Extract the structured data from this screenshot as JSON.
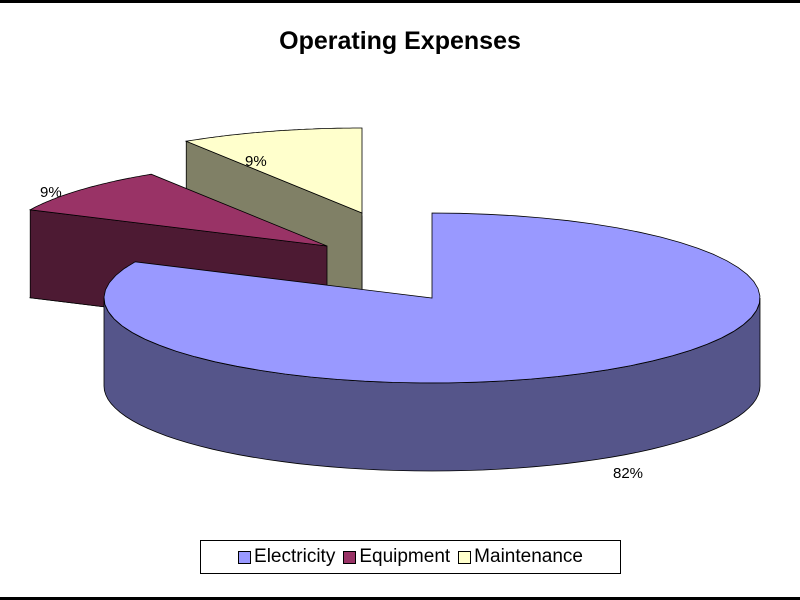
{
  "chart_data": {
    "type": "pie",
    "style": "3d-exploded",
    "title": "Operating Expenses",
    "categories": [
      "Electricity",
      "Equipment",
      "Maintenance"
    ],
    "values": [
      82,
      9,
      9
    ],
    "data_labels": [
      "82%",
      "9%",
      "9%"
    ],
    "colors": [
      "#9999ff",
      "#993366",
      "#ffffcc"
    ],
    "side_colors": [
      "#55558a",
      "#4d1a33",
      "#808066"
    ],
    "legend_position": "bottom"
  }
}
